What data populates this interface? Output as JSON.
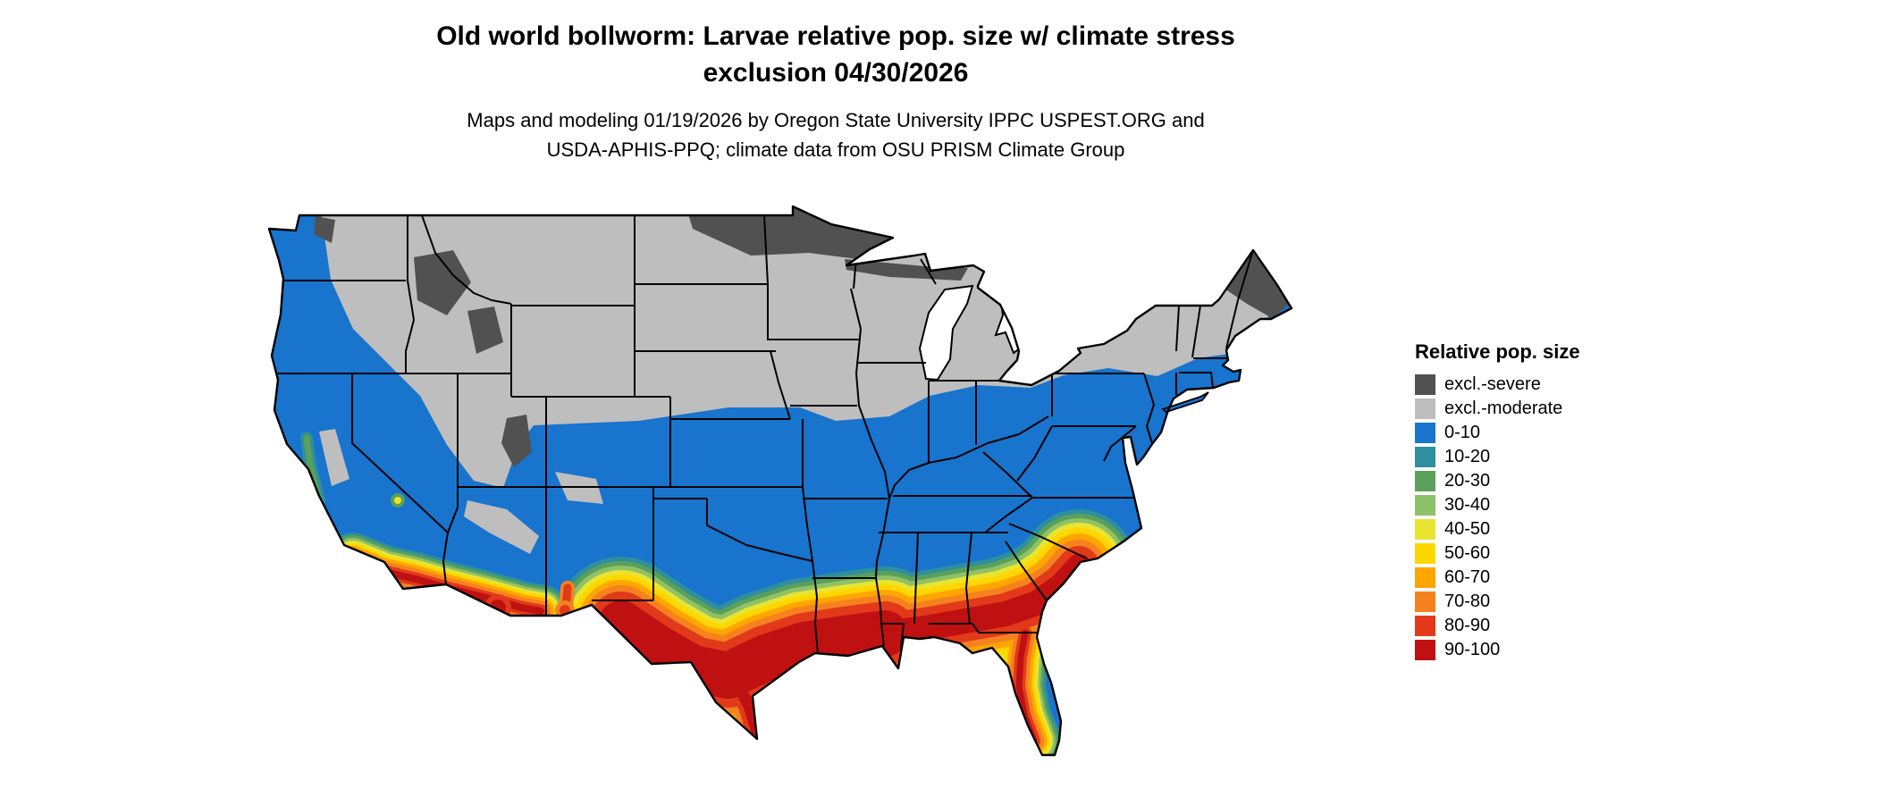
{
  "title": {
    "line1": "Old world bollworm: Larvae relative pop. size w/ climate stress",
    "line2": "exclusion 04/30/2026"
  },
  "subtitle": {
    "line1": "Maps and modeling 01/19/2026 by Oregon State University IPPC USPEST.ORG and",
    "line2": "USDA-APHIS-PPQ; climate data from OSU PRISM Climate Group"
  },
  "legend": {
    "title": "Relative pop. size",
    "items": [
      {
        "label": "excl.-severe",
        "color": "#515151"
      },
      {
        "label": "excl.-moderate",
        "color": "#bebebe"
      },
      {
        "label": "0-10",
        "color": "#1874cd"
      },
      {
        "label": "10-20",
        "color": "#2e8f9e"
      },
      {
        "label": "20-30",
        "color": "#5aa05a"
      },
      {
        "label": "30-40",
        "color": "#8fc168"
      },
      {
        "label": "40-50",
        "color": "#e8e430"
      },
      {
        "label": "50-60",
        "color": "#ffd700"
      },
      {
        "label": "60-70",
        "color": "#ffa500"
      },
      {
        "label": "70-80",
        "color": "#f5821f"
      },
      {
        "label": "80-90",
        "color": "#e2391b"
      },
      {
        "label": "90-100",
        "color": "#bf1111"
      }
    ]
  },
  "map": {
    "region": "Continental United States",
    "type": "raster choropleth with state borders",
    "background_color": "#ffffff",
    "border_color": "#000000",
    "distribution": [
      {
        "class": "excl.-severe",
        "area": "northern Minnesota / eastern North Dakota, northern Maine, high Rockies patches"
      },
      {
        "class": "excl.-moderate",
        "area": "northern tier: MT, WY, Dakotas, NE, IA, MN, WI, MI, upstate NY, northern New England, Rockies"
      },
      {
        "class": "0-10",
        "area": "most of the West Coast, Southwest, southern Plains, Midwest south of 40N, and the East"
      },
      {
        "class": "40-100 high band",
        "area": "southern Texas through Gulf Coast states into Georgia and coastal South Carolina, central Florida, southern Arizona and southern California"
      }
    ]
  }
}
